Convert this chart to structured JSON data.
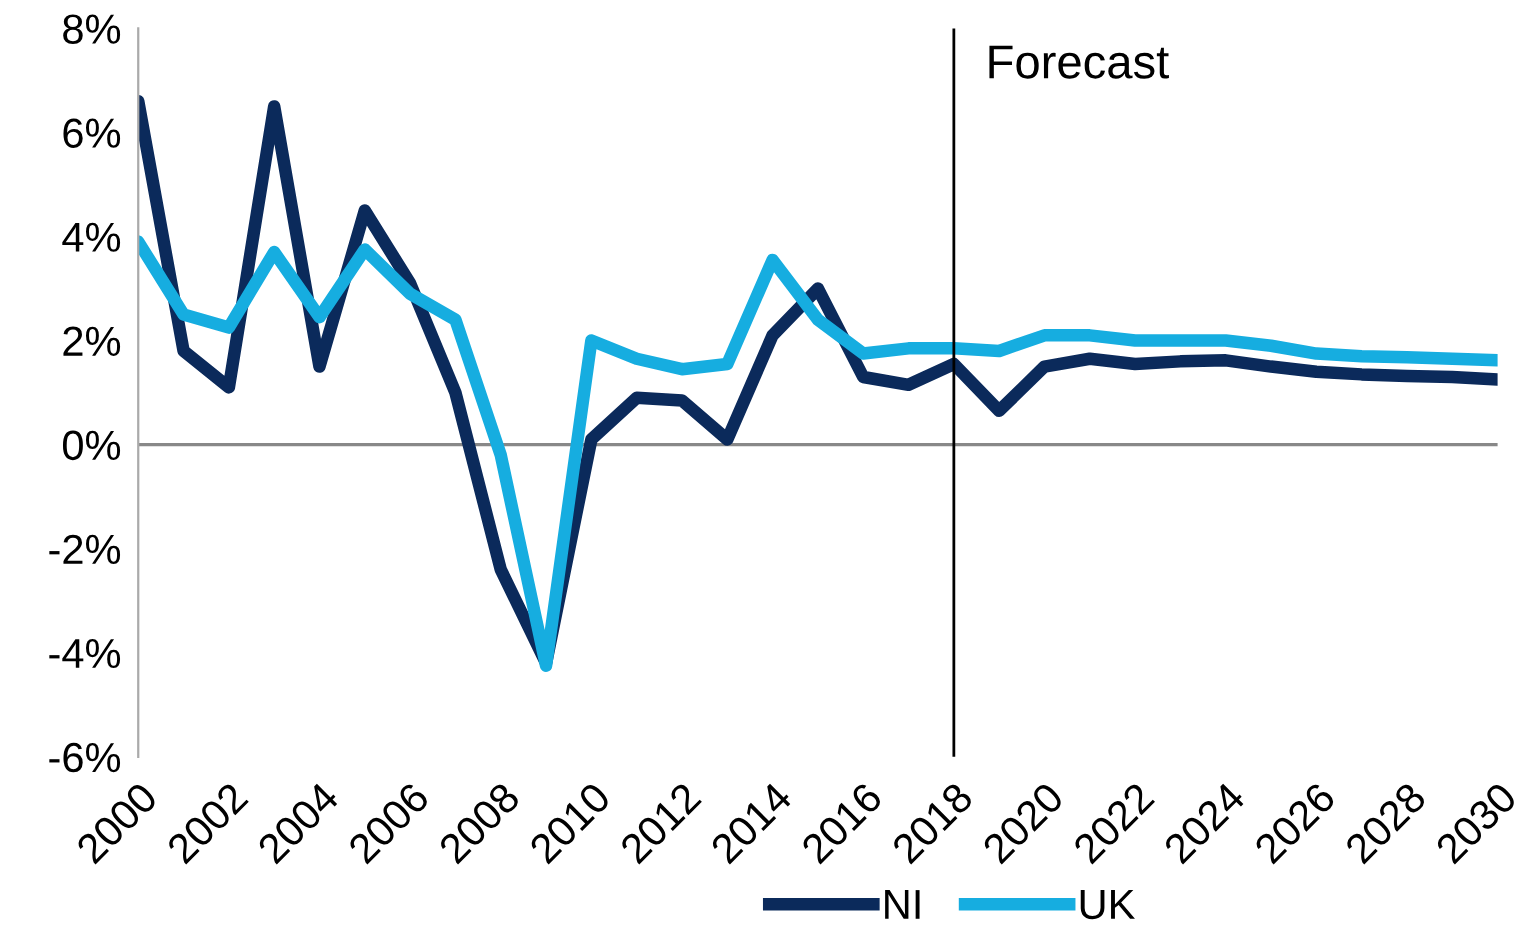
{
  "chart_data": {
    "type": "line",
    "x": [
      2000,
      2001,
      2002,
      2003,
      2004,
      2005,
      2006,
      2007,
      2008,
      2009,
      2010,
      2011,
      2012,
      2013,
      2014,
      2015,
      2016,
      2017,
      2018,
      2019,
      2020,
      2021,
      2022,
      2023,
      2024,
      2025,
      2026,
      2027,
      2028,
      2029,
      2030
    ],
    "series": [
      {
        "name": "NI",
        "color": "#0b2a5b",
        "values": [
          6.6,
          1.8,
          1.1,
          6.5,
          1.5,
          4.5,
          3.1,
          1.0,
          -2.4,
          -4.2,
          0.1,
          0.9,
          0.85,
          0.1,
          2.1,
          3.0,
          1.3,
          1.15,
          1.55,
          0.65,
          1.5,
          1.65,
          1.55,
          1.6,
          1.62,
          1.5,
          1.4,
          1.35,
          1.32,
          1.3,
          1.25
        ]
      },
      {
        "name": "UK",
        "color": "#16ade0",
        "values": [
          3.9,
          2.5,
          2.25,
          3.7,
          2.45,
          3.75,
          2.9,
          2.4,
          -0.2,
          -4.25,
          2.0,
          1.65,
          1.45,
          1.55,
          3.55,
          2.4,
          1.75,
          1.85,
          1.85,
          1.8,
          2.1,
          2.1,
          2.0,
          2.0,
          2.0,
          1.9,
          1.75,
          1.7,
          1.68,
          1.65,
          1.62
        ]
      }
    ],
    "xlim": [
      2000,
      2030
    ],
    "xticks": [
      2000,
      2002,
      2004,
      2006,
      2008,
      2010,
      2012,
      2014,
      2016,
      2018,
      2020,
      2022,
      2024,
      2026,
      2028,
      2030
    ],
    "ylim": [
      -6,
      8
    ],
    "yticks": [
      {
        "value": -6,
        "label": "-6%"
      },
      {
        "value": -4,
        "label": "-4%"
      },
      {
        "value": -2,
        "label": "-2%"
      },
      {
        "value": 0,
        "label": "0%"
      },
      {
        "value": 2,
        "label": "2%"
      },
      {
        "value": 4,
        "label": "4%"
      },
      {
        "value": 6,
        "label": "6%"
      },
      {
        "value": 8,
        "label": "8%"
      }
    ],
    "ref_lines": [
      {
        "axis": "x",
        "value": 2018,
        "label": "Forecast",
        "color": "#000000"
      },
      {
        "axis": "y",
        "value": 0,
        "color": "#888888"
      }
    ],
    "grid": false,
    "legend": "bottom",
    "marker": "none",
    "line_style": "solid"
  }
}
